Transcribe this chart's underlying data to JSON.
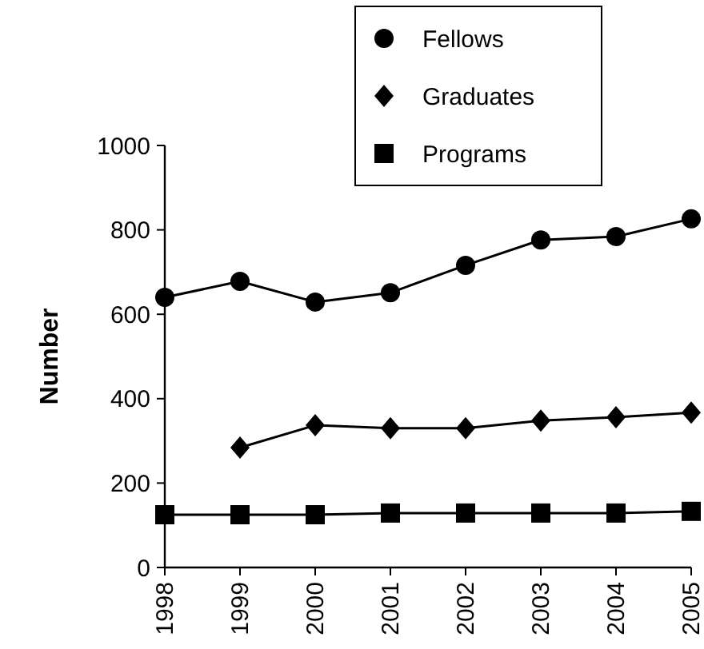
{
  "chart_data": {
    "type": "line",
    "ylabel": "Number",
    "categories": [
      "1998",
      "1999",
      "2000",
      "2001",
      "2002",
      "2003",
      "2004",
      "2005"
    ],
    "series": [
      {
        "name": "Fellows",
        "color": "#000000",
        "marker": "circle",
        "values": [
          640,
          678,
          629,
          651,
          716,
          776,
          784,
          826
        ]
      },
      {
        "name": "Graduates",
        "color": "#000000",
        "marker": "diamond",
        "values": [
          null,
          284,
          337,
          330,
          330,
          348,
          356,
          367
        ]
      },
      {
        "name": "Programs",
        "color": "#000000",
        "marker": "square",
        "values": [
          125,
          125,
          125,
          129,
          129,
          129,
          129,
          133
        ]
      }
    ],
    "ylim": [
      0,
      1000
    ],
    "yticks": [
      0,
      200,
      400,
      600,
      800,
      1000
    ],
    "grid": false,
    "legend": "top",
    "line_style": "solid"
  }
}
